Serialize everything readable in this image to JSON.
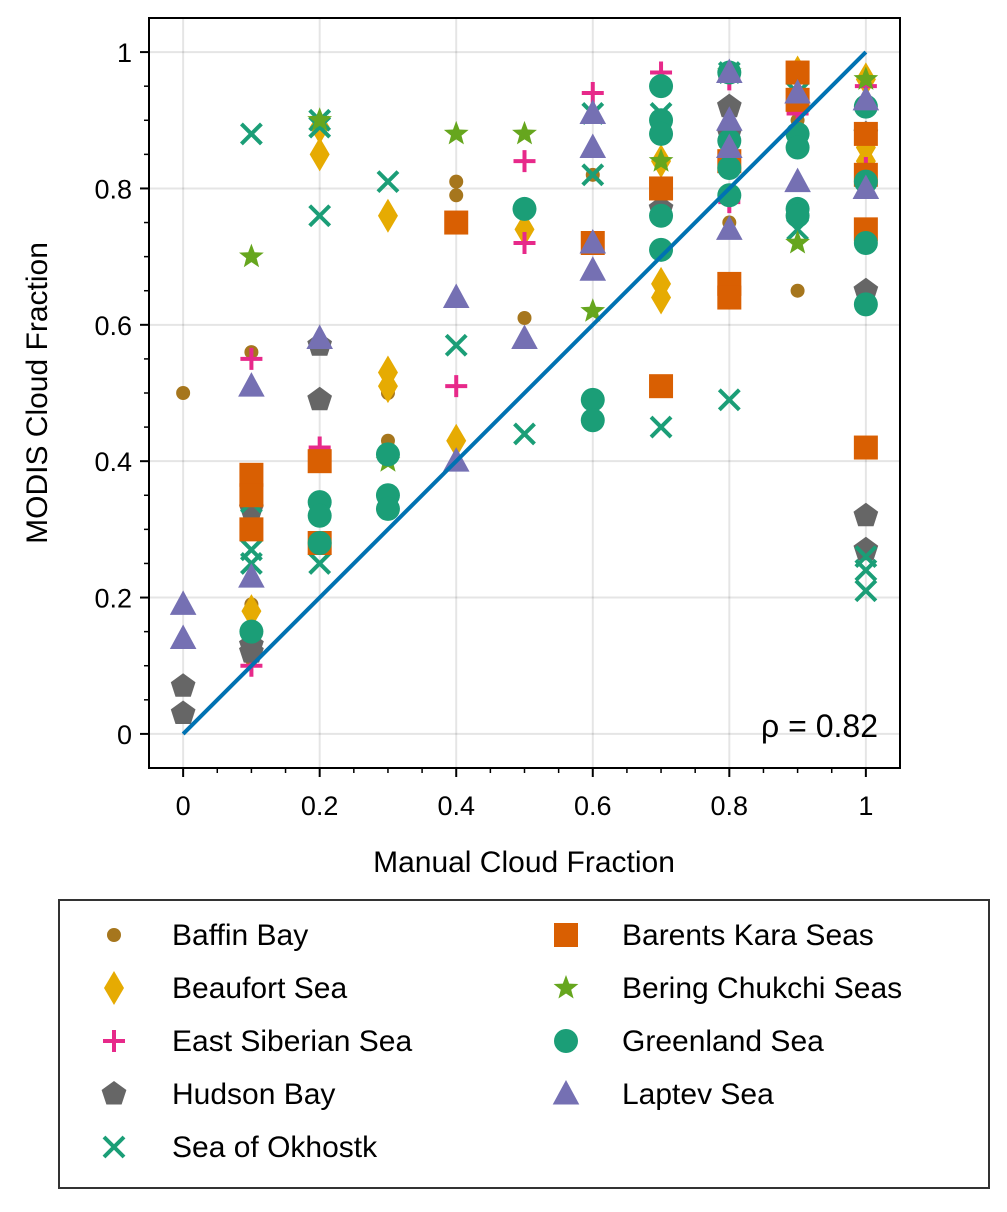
{
  "chart_data": {
    "type": "scatter",
    "xlabel": "Manual Cloud Fraction",
    "ylabel": "MODIS Cloud Fraction",
    "xlim": [
      -0.05,
      1.05
    ],
    "ylim": [
      -0.05,
      1.05
    ],
    "x_ticks": [
      {
        "value": 0,
        "label": "0"
      },
      {
        "value": 0.2,
        "label": "0.2"
      },
      {
        "value": 0.4,
        "label": "0.4"
      },
      {
        "value": 0.6,
        "label": "0.6"
      },
      {
        "value": 0.8,
        "label": "0.8"
      },
      {
        "value": 1,
        "label": "1"
      }
    ],
    "y_ticks": [
      {
        "value": 0,
        "label": "0"
      },
      {
        "value": 0.2,
        "label": "0.2"
      },
      {
        "value": 0.4,
        "label": "0.4"
      },
      {
        "value": 0.6,
        "label": "0.6"
      },
      {
        "value": 0.8,
        "label": "0.8"
      },
      {
        "value": 1,
        "label": "1"
      }
    ],
    "grid": true,
    "annotation": "ρ = 0.82",
    "reference_line": {
      "x": [
        0,
        1
      ],
      "y": [
        0,
        1
      ],
      "color": "#0072b2"
    },
    "legend_position": "below",
    "series": [
      {
        "name": "Baffin Bay",
        "marker": "circle-small",
        "color": "#a6761d",
        "points": [
          [
            0,
            0.5
          ],
          [
            0.1,
            0.56
          ],
          [
            0.1,
            0.19
          ],
          [
            0.1,
            0.11
          ],
          [
            0.2,
            0.57
          ],
          [
            0.3,
            0.5
          ],
          [
            0.3,
            0.43
          ],
          [
            0.4,
            0.81
          ],
          [
            0.4,
            0.79
          ],
          [
            0.5,
            0.61
          ],
          [
            0.6,
            0.82
          ],
          [
            0.8,
            0.75
          ],
          [
            0.9,
            0.65
          ],
          [
            0.9,
            0.9
          ],
          [
            1,
            0.87
          ],
          [
            1,
            0.74
          ]
        ]
      },
      {
        "name": "Beaufort Sea",
        "marker": "diamond",
        "color": "#e6ab02",
        "points": [
          [
            0.1,
            0.18
          ],
          [
            0.2,
            0.89
          ],
          [
            0.2,
            0.85
          ],
          [
            0.3,
            0.76
          ],
          [
            0.3,
            0.53
          ],
          [
            0.3,
            0.51
          ],
          [
            0.4,
            0.43
          ],
          [
            0.5,
            0.74
          ],
          [
            0.7,
            0.84
          ],
          [
            0.7,
            0.66
          ],
          [
            0.7,
            0.64
          ],
          [
            0.9,
            0.97
          ],
          [
            0.9,
            0.87
          ],
          [
            1,
            0.96
          ],
          [
            1,
            0.86
          ],
          [
            1,
            0.84
          ]
        ]
      },
      {
        "name": "East Siberian Sea",
        "marker": "plus",
        "color": "#e7298a",
        "points": [
          [
            0.1,
            0.55
          ],
          [
            0.1,
            0.1
          ],
          [
            0.2,
            0.42
          ],
          [
            0.4,
            0.51
          ],
          [
            0.5,
            0.84
          ],
          [
            0.5,
            0.72
          ],
          [
            0.6,
            0.94
          ],
          [
            0.7,
            0.97
          ],
          [
            0.7,
            0.71
          ],
          [
            0.8,
            0.96
          ],
          [
            0.8,
            0.78
          ],
          [
            0.9,
            0.91
          ],
          [
            1,
            0.95
          ],
          [
            1,
            0.83
          ]
        ]
      },
      {
        "name": "Hudson Bay",
        "marker": "pentagon",
        "color": "#666666",
        "points": [
          [
            0,
            0.07
          ],
          [
            0,
            0.03
          ],
          [
            0.1,
            0.33
          ],
          [
            0.1,
            0.13
          ],
          [
            0.1,
            0.12
          ],
          [
            0.2,
            0.57
          ],
          [
            0.2,
            0.49
          ],
          [
            0.7,
            0.77
          ],
          [
            0.8,
            0.92
          ],
          [
            0.8,
            0.88
          ],
          [
            1,
            0.88
          ],
          [
            1,
            0.65
          ],
          [
            1,
            0.32
          ],
          [
            1,
            0.27
          ]
        ]
      },
      {
        "name": "Sea of Okhostk",
        "marker": "x",
        "color": "#1b9e77",
        "points": [
          [
            0.1,
            0.88
          ],
          [
            0.1,
            0.34
          ],
          [
            0.1,
            0.27
          ],
          [
            0.1,
            0.25
          ],
          [
            0.2,
            0.9
          ],
          [
            0.2,
            0.89
          ],
          [
            0.2,
            0.76
          ],
          [
            0.2,
            0.25
          ],
          [
            0.3,
            0.81
          ],
          [
            0.4,
            0.57
          ],
          [
            0.5,
            0.44
          ],
          [
            0.6,
            0.91
          ],
          [
            0.6,
            0.82
          ],
          [
            0.7,
            0.91
          ],
          [
            0.7,
            0.45
          ],
          [
            0.8,
            0.97
          ],
          [
            0.8,
            0.49
          ],
          [
            0.9,
            0.94
          ],
          [
            0.9,
            0.74
          ],
          [
            1,
            0.26
          ],
          [
            1,
            0.24
          ],
          [
            1,
            0.21
          ]
        ]
      },
      {
        "name": "Barents Kara Seas",
        "marker": "square",
        "color": "#d95f02",
        "points": [
          [
            0.1,
            0.38
          ],
          [
            0.1,
            0.35
          ],
          [
            0.1,
            0.3
          ],
          [
            0.2,
            0.4
          ],
          [
            0.2,
            0.28
          ],
          [
            0.4,
            0.75
          ],
          [
            0.6,
            0.72
          ],
          [
            0.7,
            0.8
          ],
          [
            0.7,
            0.51
          ],
          [
            0.8,
            0.84
          ],
          [
            0.8,
            0.66
          ],
          [
            0.8,
            0.64
          ],
          [
            0.9,
            0.97
          ],
          [
            0.9,
            0.93
          ],
          [
            1,
            0.88
          ],
          [
            1,
            0.82
          ],
          [
            1,
            0.74
          ],
          [
            1,
            0.42
          ]
        ]
      },
      {
        "name": "Bering Chukchi Seas",
        "marker": "star",
        "color": "#66a61e",
        "points": [
          [
            0.1,
            0.7
          ],
          [
            0.2,
            0.9
          ],
          [
            0.3,
            0.4
          ],
          [
            0.4,
            0.88
          ],
          [
            0.5,
            0.88
          ],
          [
            0.6,
            0.62
          ],
          [
            0.7,
            0.84
          ],
          [
            0.8,
            0.97
          ],
          [
            0.9,
            0.72
          ],
          [
            1,
            0.96
          ]
        ]
      },
      {
        "name": "Greenland Sea",
        "marker": "circle",
        "color": "#1b9e77",
        "points": [
          [
            0.1,
            0.15
          ],
          [
            0.2,
            0.34
          ],
          [
            0.2,
            0.32
          ],
          [
            0.2,
            0.28
          ],
          [
            0.3,
            0.41
          ],
          [
            0.3,
            0.35
          ],
          [
            0.3,
            0.33
          ],
          [
            0.5,
            0.77
          ],
          [
            0.6,
            0.49
          ],
          [
            0.6,
            0.46
          ],
          [
            0.7,
            0.95
          ],
          [
            0.7,
            0.9
          ],
          [
            0.7,
            0.88
          ],
          [
            0.7,
            0.76
          ],
          [
            0.7,
            0.71
          ],
          [
            0.8,
            0.97
          ],
          [
            0.8,
            0.87
          ],
          [
            0.8,
            0.83
          ],
          [
            0.8,
            0.79
          ],
          [
            0.9,
            0.88
          ],
          [
            0.9,
            0.86
          ],
          [
            0.9,
            0.77
          ],
          [
            0.9,
            0.76
          ],
          [
            1,
            0.92
          ],
          [
            1,
            0.81
          ],
          [
            1,
            0.72
          ],
          [
            1,
            0.63
          ]
        ]
      },
      {
        "name": "Laptev Sea",
        "marker": "triangle",
        "color": "#7570b3",
        "points": [
          [
            0,
            0.19
          ],
          [
            0,
            0.14
          ],
          [
            0.1,
            0.51
          ],
          [
            0.1,
            0.23
          ],
          [
            0.2,
            0.58
          ],
          [
            0.4,
            0.64
          ],
          [
            0.4,
            0.4
          ],
          [
            0.5,
            0.58
          ],
          [
            0.6,
            0.91
          ],
          [
            0.6,
            0.86
          ],
          [
            0.6,
            0.72
          ],
          [
            0.6,
            0.68
          ],
          [
            0.8,
            0.97
          ],
          [
            0.8,
            0.9
          ],
          [
            0.8,
            0.86
          ],
          [
            0.8,
            0.74
          ],
          [
            0.9,
            0.94
          ],
          [
            0.9,
            0.81
          ],
          [
            1,
            0.93
          ],
          [
            1,
            0.8
          ]
        ]
      }
    ]
  },
  "legend": {
    "left": [
      "Baffin Bay",
      "Beaufort Sea",
      "East Siberian Sea",
      "Hudson Bay",
      "Sea of Okhostk"
    ],
    "right": [
      "Barents Kara Seas",
      "Bering Chukchi Seas",
      "Greenland Sea",
      "Laptev Sea"
    ]
  }
}
